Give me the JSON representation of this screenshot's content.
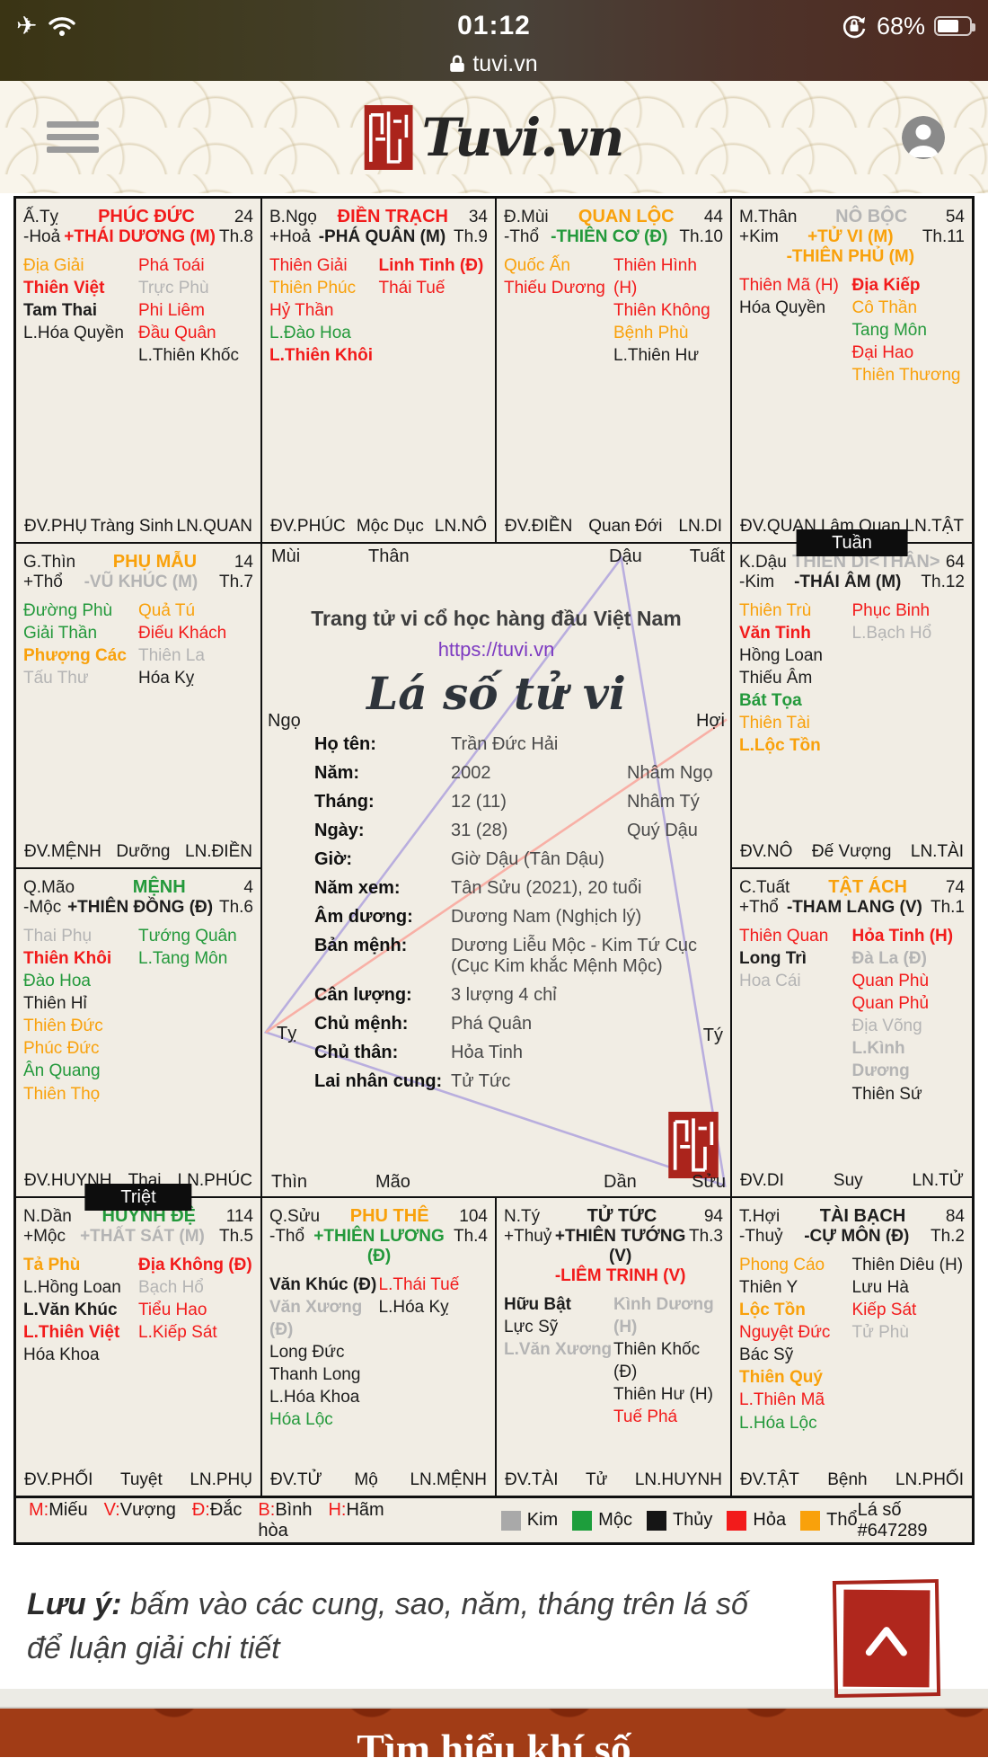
{
  "colors": {
    "r": "#f21b1b",
    "o": "#f9a10b",
    "g": "#23993b",
    "y": "#b4b4b4",
    "k": "#1d1d1d",
    "seal_red": "#ab241c",
    "link_purple": "#7d3ac1",
    "line_purple": "#b9aede",
    "line_pink": "#f8b0a6"
  },
  "status_bar": {
    "time": "01:12",
    "battery": "68%",
    "url": "tuvi.vn"
  },
  "header": {
    "logo_text": "Tuvi.vn"
  },
  "cells": [
    {
      "chi": "Ấ.Tỵ",
      "palace": "PHÚC ĐỨC",
      "pc": "r",
      "so": "24",
      "hanh": "-Hoả",
      "mains": [
        [
          "+THÁI DƯƠNG (M)",
          "r"
        ]
      ],
      "th": "Th.8",
      "left": [
        [
          "Địa Giải",
          "o",
          0
        ],
        [
          "Thiên Việt",
          "r",
          1
        ],
        [
          "Tam Thai",
          "k",
          1
        ],
        [
          "L.Hóa Quyền",
          "k",
          0
        ]
      ],
      "right": [
        [
          "Phá Toái",
          "r",
          0
        ],
        [
          "Trực Phù",
          "y",
          0
        ],
        [
          "Phi Liêm",
          "r",
          0
        ],
        [
          "Đầu Quân",
          "r",
          0
        ],
        [
          "L.Thiên Khốc",
          "k",
          0
        ]
      ],
      "foot": [
        "ĐV.PHỤ",
        "Tràng Sinh",
        "LN.QUAN"
      ]
    },
    {
      "chi": "B.Ngọ",
      "palace": "ĐIỀN TRẠCH",
      "pc": "r",
      "so": "34",
      "hanh": "+Hoả",
      "mains": [
        [
          "-PHÁ QUÂN (M)",
          "k"
        ]
      ],
      "th": "Th.9",
      "left": [
        [
          "Thiên Giải",
          "r",
          0
        ],
        [
          "Thiên Phúc",
          "o",
          0
        ],
        [
          "Hỷ Thần",
          "r",
          0
        ],
        [
          "L.Đào Hoa",
          "g",
          0
        ],
        [
          "L.Thiên Khôi",
          "r",
          1
        ]
      ],
      "right": [
        [
          "Linh Tinh (Đ)",
          "r",
          1
        ],
        [
          "Thái Tuế",
          "r",
          0
        ]
      ],
      "foot": [
        "ĐV.PHÚC",
        "Mộc Dục",
        "LN.NÔ"
      ]
    },
    {
      "chi": "Đ.Mùi",
      "palace": "QUAN LỘC",
      "pc": "o",
      "so": "44",
      "hanh": "-Thổ",
      "mains": [
        [
          "-THIÊN CƠ (Đ)",
          "g"
        ]
      ],
      "th": "Th.10",
      "left": [
        [
          "Quốc Ấn",
          "o",
          0
        ],
        [
          "Thiếu Dương",
          "r",
          0
        ]
      ],
      "right": [
        [
          "Thiên Hình (H)",
          "r",
          0
        ],
        [
          "Thiên Không",
          "r",
          0
        ],
        [
          "Bệnh Phù",
          "o",
          0
        ],
        [
          "L.Thiên Hư",
          "k",
          0
        ]
      ],
      "foot": [
        "ĐV.ĐIỀN",
        "Quan Đới",
        "LN.DI"
      ]
    },
    {
      "chi": "M.Thân",
      "palace": "NÔ BỘC",
      "pc": "y",
      "so": "54",
      "hanh": "+Kim",
      "mains": [
        [
          "+TỬ VI (M)",
          "o"
        ],
        [
          "-THIÊN PHỦ (M)",
          "o"
        ]
      ],
      "th": "Th.11",
      "left": [
        [
          "Thiên Mã (H)",
          "r",
          0
        ],
        [
          "Hóa Quyền",
          "k",
          0
        ]
      ],
      "right": [
        [
          "Địa Kiếp",
          "r",
          1
        ],
        [
          "Cô Thần",
          "o",
          0
        ],
        [
          "Tang Môn",
          "g",
          0
        ],
        [
          "Đại Hao",
          "r",
          0
        ],
        [
          "Thiên Thương",
          "o",
          0
        ]
      ],
      "foot": [
        "ĐV.QUAN",
        "Lâm Quan",
        "LN.TẬT"
      ]
    },
    {
      "chi": "G.Thìn",
      "palace": "PHỤ MẪU",
      "pc": "o",
      "so": "14",
      "hanh": "+Thổ",
      "mains": [
        [
          "-VŨ KHÚC (M)",
          "y"
        ]
      ],
      "th": "Th.7",
      "left": [
        [
          "Đường Phù",
          "g",
          0
        ],
        [
          "Giải Thần",
          "g",
          0
        ],
        [
          "Phượng Các",
          "o",
          1
        ],
        [
          "Tấu Thư",
          "y",
          0
        ]
      ],
      "right": [
        [
          "Quả Tú",
          "o",
          0
        ],
        [
          "Điếu Khách",
          "r",
          0
        ],
        [
          "Thiên La",
          "y",
          0
        ],
        [
          "Hóa Kỵ",
          "k",
          0
        ]
      ],
      "foot": [
        "ĐV.MỆNH",
        "Dưỡng",
        "LN.ĐIỀN"
      ]
    },
    {
      "chi": "K.Dậu",
      "palace": "THIÊN DI<THÂN>",
      "pc": "y",
      "so": "64",
      "hanh": "-Kim",
      "mains": [
        [
          "-THÁI ÂM (M)",
          "k"
        ]
      ],
      "th": "Th.12",
      "tab": "Tuần",
      "left": [
        [
          "Thiên Trù",
          "o",
          0
        ],
        [
          "Văn Tinh",
          "r",
          1
        ],
        [
          "Hồng Loan",
          "k",
          0
        ],
        [
          "Thiếu Âm",
          "k",
          0
        ],
        [
          "Bát Tọa",
          "g",
          1
        ],
        [
          "Thiên Tài",
          "o",
          0
        ],
        [
          "L.Lộc Tồn",
          "o",
          1
        ]
      ],
      "right": [
        [
          "Phục Binh",
          "r",
          0
        ],
        [
          "L.Bạch Hổ",
          "y",
          0
        ]
      ],
      "foot": [
        "ĐV.NÔ",
        "Đế Vượng",
        "LN.TÀI"
      ]
    },
    {
      "chi": "Q.Mão",
      "palace": "MỆNH",
      "pc": "g",
      "so": "4",
      "hanh": "-Mộc",
      "mains": [
        [
          "+THIÊN ĐỒNG (Đ)",
          "k"
        ]
      ],
      "th": "Th.6",
      "left": [
        [
          "Thai Phụ",
          "y",
          0
        ],
        [
          "Thiên Khôi",
          "r",
          1
        ],
        [
          "Đào Hoa",
          "g",
          0
        ],
        [
          "Thiên Hỉ",
          "k",
          0
        ],
        [
          "Thiên Đức",
          "o",
          0
        ],
        [
          "Phúc Đức",
          "o",
          0
        ],
        [
          "Ân Quang",
          "g",
          0
        ],
        [
          "Thiên Thọ",
          "o",
          0
        ]
      ],
      "right": [
        [
          "Tướng Quân",
          "g",
          0
        ],
        [
          "L.Tang Môn",
          "g",
          0
        ]
      ],
      "foot": [
        "ĐV.HUYNH",
        "Thai",
        "LN.PHÚC"
      ]
    },
    {
      "chi": "C.Tuất",
      "palace": "TẬT ÁCH",
      "pc": "o",
      "so": "74",
      "hanh": "+Thổ",
      "mains": [
        [
          "-THAM LANG (V)",
          "k"
        ]
      ],
      "th": "Th.1",
      "left": [
        [
          "Thiên Quan",
          "r",
          0
        ],
        [
          "Long Trì",
          "k",
          1
        ],
        [
          "Hoa Cái",
          "y",
          0
        ]
      ],
      "right": [
        [
          "Hỏa Tinh (H)",
          "r",
          1
        ],
        [
          "Đà La (Đ)",
          "y",
          1
        ],
        [
          "Quan Phù",
          "r",
          0
        ],
        [
          "Quan Phủ",
          "r",
          0
        ],
        [
          "Địa Võng",
          "y",
          0
        ],
        [
          "L.Kình Dương",
          "y",
          1
        ],
        [
          "Thiên Sứ",
          "k",
          0
        ]
      ],
      "foot": [
        "ĐV.DI",
        "Suy",
        "LN.TỬ"
      ]
    },
    {
      "chi": "N.Dần",
      "palace": "HUYNH ĐỆ",
      "pc": "g",
      "so": "114",
      "hanh": "+Mộc",
      "mains": [
        [
          "+THẤT SÁT (M)",
          "y"
        ]
      ],
      "th": "Th.5",
      "tab": "Triệt",
      "left": [
        [
          "Tả Phù",
          "o",
          1
        ],
        [
          "L.Hồng Loan",
          "k",
          0
        ],
        [
          "L.Văn Khúc",
          "k",
          1
        ],
        [
          "L.Thiên Việt",
          "r",
          1
        ],
        [
          "Hóa Khoa",
          "k",
          0
        ]
      ],
      "right": [
        [
          "Địa Không (Đ)",
          "r",
          1
        ],
        [
          "Bạch Hổ",
          "y",
          0
        ],
        [
          "Tiểu Hao",
          "r",
          0
        ],
        [
          "L.Kiếp Sát",
          "r",
          0
        ]
      ],
      "foot": [
        "ĐV.PHỐI",
        "Tuyệt",
        "LN.PHỤ"
      ]
    },
    {
      "chi": "Q.Sửu",
      "palace": "PHU THÊ",
      "pc": "o",
      "so": "104",
      "hanh": "-Thổ",
      "mains": [
        [
          "+THIÊN LƯƠNG (Đ)",
          "g"
        ]
      ],
      "th": "Th.4",
      "left": [
        [
          "Văn Khúc (Đ)",
          "k",
          1
        ],
        [
          "Văn Xương (Đ)",
          "y",
          1
        ],
        [
          "Long Đức",
          "k",
          0
        ],
        [
          "Thanh Long",
          "k",
          0
        ],
        [
          "L.Hóa Khoa",
          "k",
          0
        ],
        [
          "Hóa Lộc",
          "g",
          0
        ]
      ],
      "right": [
        [
          "L.Thái Tuế",
          "r",
          0
        ],
        [
          "L.Hóa Kỵ",
          "k",
          0
        ]
      ],
      "foot": [
        "ĐV.TỬ",
        "Mộ",
        "LN.MỆNH"
      ]
    },
    {
      "chi": "N.Tý",
      "palace": "TỬ TỨC",
      "pc": "k",
      "so": "94",
      "hanh": "+Thuỷ",
      "mains": [
        [
          "+THIÊN TƯỚNG (V)",
          "k"
        ],
        [
          "-LIÊM TRINH (V)",
          "r"
        ]
      ],
      "th": "Th.3",
      "left": [
        [
          "Hữu Bật",
          "k",
          1
        ],
        [
          "Lực Sỹ",
          "k",
          0
        ],
        [
          "L.Văn Xương",
          "y",
          1
        ]
      ],
      "right": [
        [
          "Kình Dương (H)",
          "y",
          1
        ],
        [
          "Thiên Khốc (Đ)",
          "k",
          0
        ],
        [
          "Thiên Hư (H)",
          "k",
          0
        ],
        [
          "Tuế Phá",
          "r",
          0
        ]
      ],
      "foot": [
        "ĐV.TÀI",
        "Tử",
        "LN.HUYNH"
      ]
    },
    {
      "chi": "T.Hợi",
      "palace": "TÀI BẠCH",
      "pc": "k",
      "so": "84",
      "hanh": "-Thuỷ",
      "mains": [
        [
          "-CỰ MÔN (Đ)",
          "k"
        ]
      ],
      "th": "Th.2",
      "left": [
        [
          "Phong Cáo",
          "o",
          0
        ],
        [
          "Thiên Y",
          "k",
          0
        ],
        [
          "Lộc Tồn",
          "o",
          1
        ],
        [
          "Nguyệt Đức",
          "r",
          0
        ],
        [
          "Bác Sỹ",
          "k",
          0
        ],
        [
          "Thiên Quý",
          "o",
          1
        ],
        [
          "L.Thiên Mã",
          "r",
          0
        ],
        [
          "L.Hóa Lộc",
          "g",
          0
        ]
      ],
      "right": [
        [
          "Thiên Diêu (H)",
          "k",
          0
        ],
        [
          "Lưu Hà",
          "k",
          0
        ],
        [
          "Kiếp Sát",
          "r",
          0
        ],
        [
          "Tử Phù",
          "y",
          0
        ]
      ],
      "foot": [
        "ĐV.TẬT",
        "Bệnh",
        "LN.PHỐI"
      ]
    }
  ],
  "center": {
    "corners": [
      "Mùi",
      "Thân",
      "Dậu",
      "Tuất",
      "Ngọ",
      "Hợi",
      "Tỵ",
      "Tý",
      "Thìn",
      "Mão",
      "Dần",
      "Sửu"
    ],
    "tagline": "Trang tử vi cổ học hàng đầu Việt Nam",
    "url": "https://tuvi.vn",
    "title": "Lá số tử vi",
    "info_rows": [
      [
        "Họ tên:",
        "Trần Đức Hải"
      ],
      [
        "Năm:",
        "2002",
        "Nhâm Ngọ"
      ],
      [
        "Tháng:",
        "12 (11)",
        "Nhâm Tý"
      ],
      [
        "Ngày:",
        "31 (28)",
        "Quý Dậu"
      ],
      [
        "Giờ:",
        "Giờ Dậu (Tân Dậu)"
      ],
      [
        "Năm xem:",
        "Tân Sửu (2021), 20 tuổi"
      ],
      [
        "Âm dương:",
        "Dương Nam (Nghịch lý)"
      ],
      [
        "Bản mệnh:",
        "Dương Liễu Mộc - Kim Tứ Cục (Cục Kim khắc Mệnh Mộc)"
      ],
      [
        "Cân lượng:",
        "3 lượng 4 chỉ"
      ],
      [
        "Chủ mệnh:",
        "Phá Quân"
      ],
      [
        "Chủ thân:",
        "Hỏa Tinh"
      ],
      [
        "Lai nhân cung:",
        "Tử Tức"
      ]
    ]
  },
  "legend": {
    "ratings": [
      {
        "k": "M",
        "v": "Miếu"
      },
      {
        "k": "V",
        "v": "Vượng"
      },
      {
        "k": "Đ",
        "v": "Đắc"
      },
      {
        "k": "B",
        "v": "Bình hòa"
      },
      {
        "k": "H",
        "v": "Hãm"
      }
    ],
    "elements": [
      {
        "label": "Kim",
        "color": "#a9a9a9"
      },
      {
        "label": "Mộc",
        "color": "#1d9e3c"
      },
      {
        "label": "Thủy",
        "color": "#151515"
      },
      {
        "label": "Hỏa",
        "color": "#f21b1b"
      },
      {
        "label": "Thổ",
        "color": "#f9a10b"
      }
    ],
    "chart_id": "Lá số #647289"
  },
  "note": {
    "prefix": "Lưu ý:",
    "text": " bấm vào các cung, sao, năm, tháng trên lá số để luận giải chi tiết"
  },
  "footer_band": {
    "text": "Tìm hiểu khí số"
  }
}
